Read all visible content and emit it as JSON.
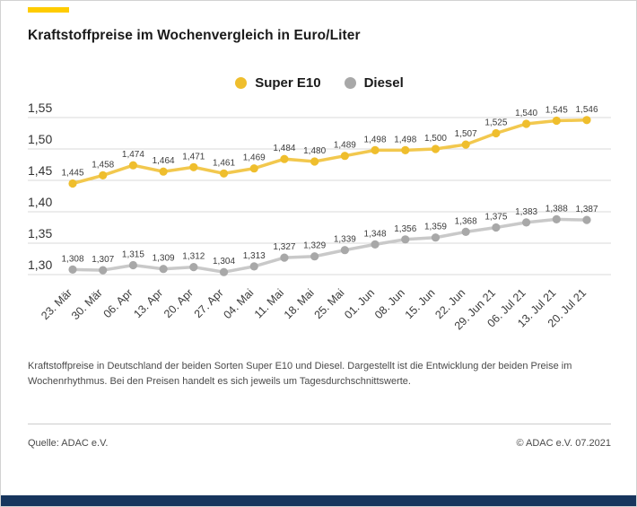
{
  "branding": {
    "accent_color": "#FFCC00",
    "footer_bar_color": "#17355D"
  },
  "header": {
    "title": "Kraftstoffpreise im Wochenvergleich in Euro/Liter"
  },
  "legend": {
    "items": [
      {
        "label": "Super E10",
        "color": "#EFBE2D"
      },
      {
        "label": "Diesel",
        "color": "#A8A8A8"
      }
    ]
  },
  "chart_data": {
    "type": "line",
    "title": "Kraftstoffpreise im Wochenvergleich in Euro/Liter",
    "xlabel": "",
    "ylabel": "Euro/Liter",
    "ylim": [
      1.3,
      1.55
    ],
    "grid": true,
    "legend_position": "top-center",
    "value_label_format": "german-comma-3-decimals",
    "grid_color": "#d8d8d8",
    "label_color": "#3c3c3c",
    "categories": [
      "23. Mär",
      "30. Mär",
      "06. Apr",
      "13. Apr",
      "20. Apr",
      "27. Apr",
      "04. Mai",
      "11. Mai",
      "18. Mai",
      "25. Mai",
      "01. Jun",
      "08. Jun",
      "15. Jun",
      "22. Jun",
      "29. Jun 21",
      "06. Jul 21",
      "13. Jul 21",
      "20. Jul 21"
    ],
    "y_ticks": [
      {
        "label": "1,55",
        "value": 1.55
      },
      {
        "label": "1,50",
        "value": 1.5
      },
      {
        "label": "1,45",
        "value": 1.45
      },
      {
        "label": "1,40",
        "value": 1.4
      },
      {
        "label": "1,35",
        "value": 1.35
      },
      {
        "label": "1,30",
        "value": 1.3
      }
    ],
    "series": [
      {
        "name": "Diesel",
        "dot_color": "#A8A8A8",
        "line_color": "#C9C9C9",
        "values": [
          1.308,
          1.307,
          1.315,
          1.309,
          1.312,
          1.304,
          1.313,
          1.327,
          1.329,
          1.339,
          1.348,
          1.356,
          1.359,
          1.368,
          1.375,
          1.383,
          1.388,
          1.387
        ]
      },
      {
        "name": "Super E10",
        "dot_color": "#EFBE2D",
        "line_color": "#F2C84E",
        "values": [
          1.445,
          1.458,
          1.474,
          1.464,
          1.471,
          1.461,
          1.469,
          1.484,
          1.48,
          1.489,
          1.498,
          1.498,
          1.5,
          1.507,
          1.525,
          1.54,
          1.545,
          1.546
        ]
      }
    ]
  },
  "footnote": "Kraftstoffpreise in Deutschland der beiden Sorten Super E10 und Diesel. Dargestellt ist die Entwicklung der beiden Preise im Wochenrhythmus. Bei den Preisen handelt es sich jeweils um Tagesdurchschnittswerte.",
  "source": {
    "left": "Quelle: ADAC e.V.",
    "right": "© ADAC e.V. 07.2021"
  }
}
